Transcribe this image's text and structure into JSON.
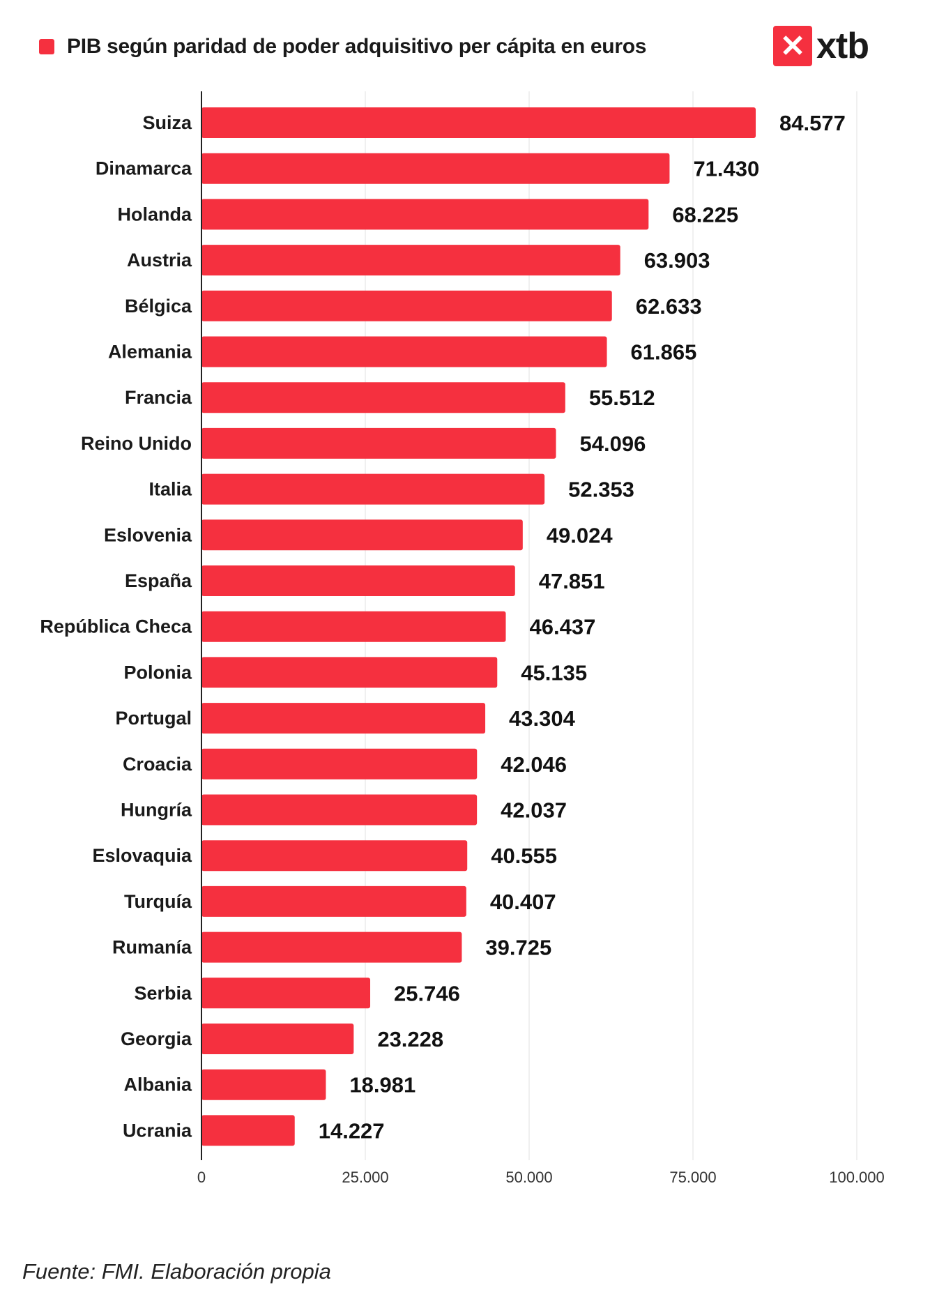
{
  "chart_data": {
    "type": "bar",
    "orientation": "horizontal",
    "title": "",
    "legend": {
      "label": "PIB según paridad de poder adquisitivo per cápita en euros",
      "placement": "top-left"
    },
    "categories": [
      "Suiza",
      "Dinamarca",
      "Holanda",
      "Austria",
      "Bélgica",
      "Alemania",
      "Francia",
      "Reino Unido",
      "Italia",
      "Eslovenia",
      "España",
      "República Checa",
      "Polonia",
      "Portugal",
      "Croacia",
      "Hungría",
      "Eslovaquia",
      "Turquía",
      "Rumanía",
      "Serbia",
      "Georgia",
      "Albania",
      "Ucrania"
    ],
    "values": [
      84577,
      71430,
      68225,
      63903,
      62633,
      61865,
      55512,
      54096,
      52353,
      49024,
      47851,
      46437,
      45135,
      43304,
      42046,
      42037,
      40555,
      40407,
      39725,
      25746,
      23228,
      18981,
      14227
    ],
    "value_labels": [
      "84.577",
      "71.430",
      "68.225",
      "63.903",
      "62.633",
      "61.865",
      "55.512",
      "54.096",
      "52.353",
      "49.024",
      "47.851",
      "46.437",
      "45.135",
      "43.304",
      "42.046",
      "42.037",
      "40.555",
      "40.407",
      "39.725",
      "25.746",
      "23.228",
      "18.981",
      "14.227"
    ],
    "xlim": [
      0,
      100000
    ],
    "ticks": [
      0,
      25000,
      50000,
      75000,
      100000
    ],
    "tick_labels": [
      "0",
      "25.000",
      "50.000",
      "75.000",
      "100.000"
    ],
    "grid": "vertical",
    "bar_color": "#f5303f"
  },
  "logo": {
    "text": "xtb",
    "mark": "✕"
  },
  "footer": "Fuente: FMI. Elaboración propia"
}
